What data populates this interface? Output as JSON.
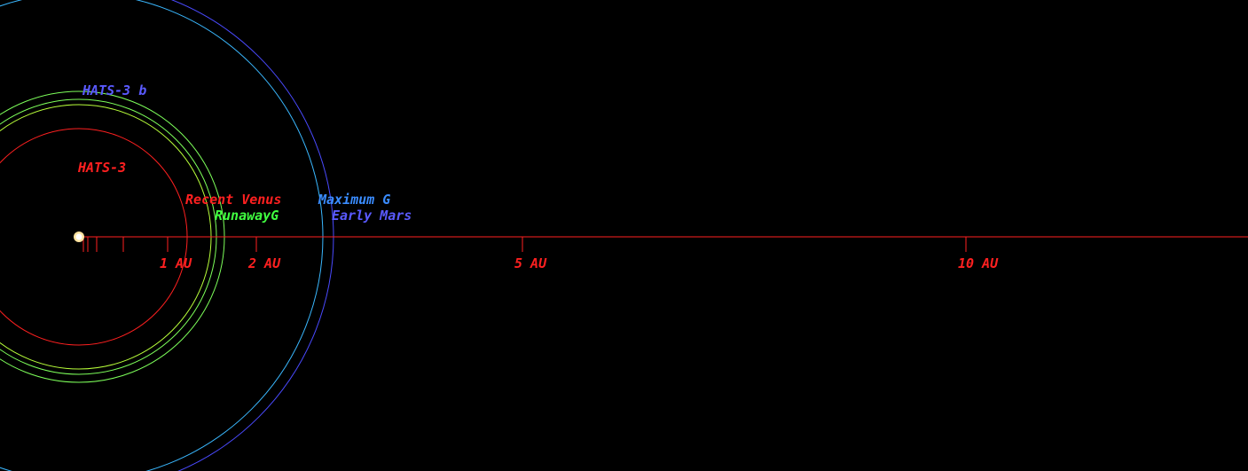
{
  "star": {
    "name": "HATS-3",
    "color": "#ff2020"
  },
  "planets": [
    {
      "name": "HATS-3 b",
      "color": "#5a5aff"
    }
  ],
  "zones": [
    {
      "label": "Recent Venus",
      "color": "#ff2020",
      "ring_color": "#ff2020",
      "radius_au": 1.22
    },
    {
      "label": "RunawayG",
      "color": "#40ff40",
      "ring_color": "#b8ff3a",
      "radius_au": 1.49
    },
    {
      "label": "",
      "color": "#40ff40",
      "ring_color": "#7dff5a",
      "radius_au": 1.55
    },
    {
      "label": "Maximum G",
      "color": "#3a8cff",
      "ring_color": "#3ab8ff",
      "radius_au": 2.83
    },
    {
      "label": "Early Mars",
      "color": "#5a5aff",
      "ring_color": "#4a4aff",
      "radius_au": 2.96
    }
  ],
  "scale": {
    "line_color": "#ff2020",
    "ticks_au": [
      0.05,
      0.1,
      0.2,
      0.5,
      1,
      2,
      5,
      10
    ],
    "labels": [
      {
        "au": 1,
        "text": "1 AU"
      },
      {
        "au": 2,
        "text": "2 AU"
      },
      {
        "au": 5,
        "text": "5 AU"
      },
      {
        "au": 10,
        "text": "10 AU"
      }
    ]
  }
}
